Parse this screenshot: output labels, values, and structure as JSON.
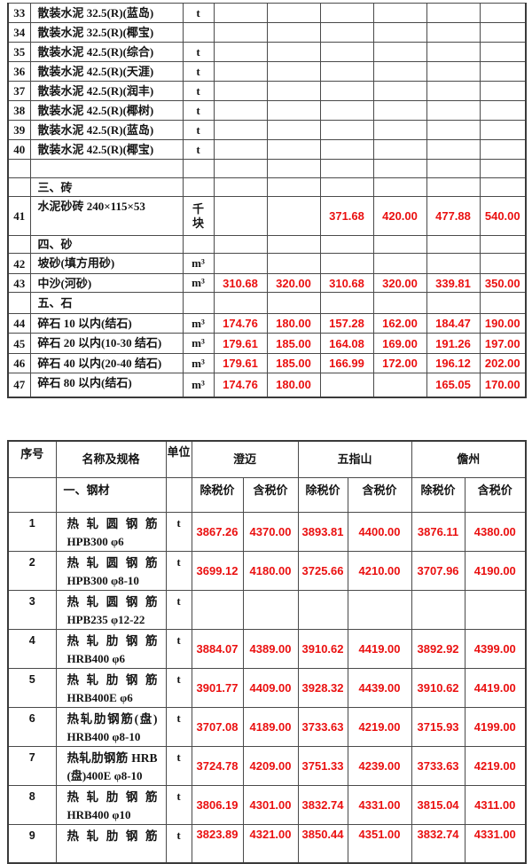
{
  "colors": {
    "price_red": "#ea1010",
    "text": "#141414",
    "border": "#4a4a4a",
    "background": "#ffffff"
  },
  "table1": {
    "rows": [
      {
        "no": "33",
        "name": "散装水泥 32.5(R)(蓝岛)",
        "unit": "t",
        "v": [
          "",
          "",
          "",
          "",
          "",
          ""
        ]
      },
      {
        "no": "34",
        "name": "散装水泥 32.5(R)(椰宝)",
        "unit": "",
        "v": [
          "",
          "",
          "",
          "",
          "",
          ""
        ]
      },
      {
        "no": "35",
        "name": "散装水泥 42.5(R)(综合)",
        "unit": "t",
        "v": [
          "",
          "",
          "",
          "",
          "",
          ""
        ]
      },
      {
        "no": "36",
        "name": "散装水泥 42.5(R)(天涯)",
        "unit": "t",
        "v": [
          "",
          "",
          "",
          "",
          "",
          ""
        ]
      },
      {
        "no": "37",
        "name": "散装水泥 42.5(R)(润丰)",
        "unit": "t",
        "v": [
          "",
          "",
          "",
          "",
          "",
          ""
        ]
      },
      {
        "no": "38",
        "name": "散装水泥 42.5(R)(椰树)",
        "unit": "t",
        "v": [
          "",
          "",
          "",
          "",
          "",
          ""
        ]
      },
      {
        "no": "39",
        "name": "散装水泥 42.5(R)(蓝岛)",
        "unit": "t",
        "v": [
          "",
          "",
          "",
          "",
          "",
          ""
        ]
      },
      {
        "no": "40",
        "name": "散装水泥 42.5(R)(椰宝)",
        "unit": "t",
        "v": [
          "",
          "",
          "",
          "",
          "",
          ""
        ]
      },
      {
        "type": "empty"
      },
      {
        "type": "section",
        "name": "三、砖"
      },
      {
        "no": "41",
        "name": "水泥砂砖 240×115×53",
        "unit": "千块",
        "tall": true,
        "v": [
          "",
          "",
          "371.68",
          "420.00",
          "477.88",
          "540.00"
        ]
      },
      {
        "type": "section",
        "name": "四、砂"
      },
      {
        "no": "42",
        "name": "坡砂(填方用砂)",
        "unit": "m³",
        "v": [
          "",
          "",
          "",
          "",
          "",
          ""
        ]
      },
      {
        "no": "43",
        "name": "中沙(河砂)",
        "unit": "m³",
        "v": [
          "310.68",
          "320.00",
          "310.68",
          "320.00",
          "339.81",
          "350.00"
        ]
      },
      {
        "type": "section",
        "name": "五、石"
      },
      {
        "no": "44",
        "name": "碎石 10 以内(结石)",
        "unit": "m³",
        "v": [
          "174.76",
          "180.00",
          "157.28",
          "162.00",
          "184.47",
          "190.00"
        ]
      },
      {
        "no": "45",
        "name": "碎石 20 以内(10-30 结石)",
        "unit": "m³",
        "v": [
          "179.61",
          "185.00",
          "164.08",
          "169.00",
          "191.26",
          "197.00"
        ]
      },
      {
        "no": "46",
        "name": "碎石 40 以内(20-40 结石)",
        "unit": "m³",
        "v": [
          "179.61",
          "185.00",
          "166.99",
          "172.00",
          "196.12",
          "202.00"
        ]
      },
      {
        "no": "47",
        "name": "碎石 80 以内(结石)",
        "unit": "m³",
        "v": [
          "174.76",
          "180.00",
          "",
          "",
          "165.05",
          "170.00"
        ]
      }
    ]
  },
  "table2": {
    "header": {
      "no": "序号",
      "name": "名称及规格",
      "unit": "单位",
      "cities": [
        "澄迈",
        "五指山",
        "儋州"
      ],
      "sub": [
        "除税价",
        "含税价"
      ],
      "section": "一、钢材"
    },
    "rows": [
      {
        "no": "1",
        "line1": "热轧圆钢筋",
        "line2": "HPB300 φ6",
        "unit": "t",
        "v": [
          "3867.26",
          "4370.00",
          "3893.81",
          "4400.00",
          "3876.11",
          "4380.00"
        ]
      },
      {
        "no": "2",
        "line1": "热轧圆钢筋",
        "line2": "HPB300 φ8-10",
        "unit": "t",
        "v": [
          "3699.12",
          "4180.00",
          "3725.66",
          "4210.00",
          "3707.96",
          "4190.00"
        ]
      },
      {
        "no": "3",
        "line1": "热轧圆钢筋",
        "line2": "HPB235 φ12-22",
        "unit": "t",
        "v": [
          "",
          "",
          "",
          "",
          "",
          ""
        ]
      },
      {
        "no": "4",
        "line1": "热轧肋钢筋",
        "line2": "HRB400 φ6",
        "unit": "t",
        "v": [
          "3884.07",
          "4389.00",
          "3910.62",
          "4419.00",
          "3892.92",
          "4399.00"
        ]
      },
      {
        "no": "5",
        "line1": "热轧肋钢筋",
        "line2": "HRB400E φ6",
        "unit": "t",
        "v": [
          "3901.77",
          "4409.00",
          "3928.32",
          "4439.00",
          "3910.62",
          "4419.00"
        ]
      },
      {
        "no": "6",
        "line1": "热轧肋钢筋(盘)",
        "line2": "HRB400 φ8-10",
        "unit": "t",
        "v": [
          "3707.08",
          "4189.00",
          "3733.63",
          "4219.00",
          "3715.93",
          "4199.00"
        ]
      },
      {
        "no": "7",
        "line1": "热轧肋钢筋 HRB",
        "line2": "(盘)400E φ8-10",
        "unit": "t",
        "v": [
          "3724.78",
          "4209.00",
          "3751.33",
          "4239.00",
          "3733.63",
          "4219.00"
        ]
      },
      {
        "no": "8",
        "line1": "热轧肋钢筋",
        "line2": "HRB400 φ10",
        "unit": "t",
        "v": [
          "3806.19",
          "4301.00",
          "3832.74",
          "4331.00",
          "3815.04",
          "4311.00"
        ]
      },
      {
        "no": "9",
        "line1": "热轧肋钢筋",
        "line2": "",
        "unit": "t",
        "cut": true,
        "v": [
          "3823.89",
          "4321.00",
          "3850.44",
          "4351.00",
          "3832.74",
          "4331.00"
        ]
      }
    ]
  }
}
